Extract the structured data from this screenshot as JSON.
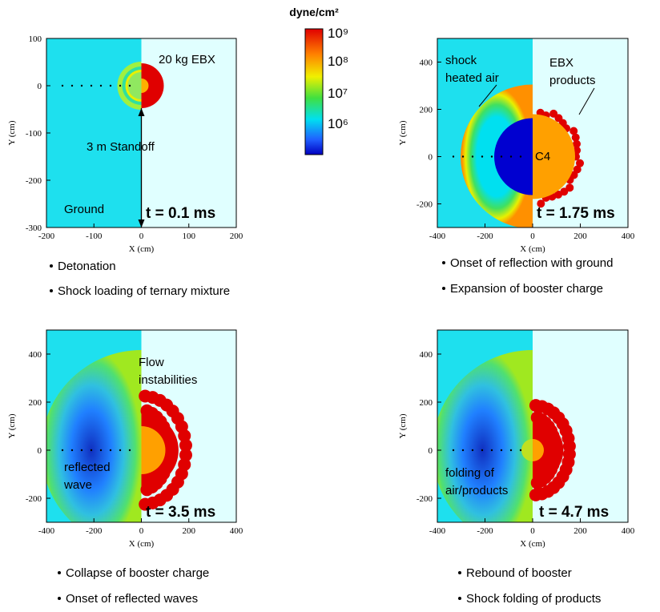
{
  "colorbar": {
    "unit": "dyne/cm²",
    "labels": [
      "10⁹",
      "10⁸",
      "10⁷",
      "10⁶"
    ]
  },
  "panels": [
    {
      "xlabel": "X (cm)",
      "ylabel": "Y (cm)",
      "xlim": [
        -200,
        200
      ],
      "ylim": [
        -300,
        100
      ],
      "xticks": [
        -200,
        -100,
        0,
        100,
        200
      ],
      "yticks": [
        100,
        0,
        -100,
        -200,
        -300
      ],
      "annotations": [
        [
          "20 kg EBX"
        ],
        [
          "3 m Standoff"
        ],
        [
          "Ground"
        ]
      ],
      "time": "t = 0.1 ms",
      "bullets": [
        "Detonation",
        "Shock loading of ternary mixture"
      ]
    },
    {
      "xlabel": "X (cm)",
      "ylabel": "Y (cm)",
      "xlim": [
        -400,
        400
      ],
      "ylim": [
        -300,
        500
      ],
      "xticks": [
        -400,
        -200,
        0,
        200,
        400
      ],
      "yticks": [
        400,
        200,
        0,
        -200
      ],
      "annotations": [
        [
          "shock",
          "heated air"
        ],
        [
          "EBX",
          "products"
        ],
        [
          "C4"
        ]
      ],
      "time": "t = 1.75 ms",
      "bullets": [
        "Onset of reflection with ground",
        "Expansion of booster charge"
      ]
    },
    {
      "xlabel": "X (cm)",
      "ylabel": "Y (cm)",
      "xlim": [
        -400,
        400
      ],
      "ylim": [
        -300,
        500
      ],
      "xticks": [
        -400,
        -200,
        0,
        200,
        400
      ],
      "yticks": [
        400,
        200,
        0,
        -200
      ],
      "annotations": [
        [
          "Flow",
          "instabilities"
        ],
        [
          "reflected",
          "wave"
        ]
      ],
      "time": "t = 3.5 ms",
      "bullets": [
        "Collapse of booster charge",
        "Onset of reflected waves"
      ]
    },
    {
      "xlabel": "X (cm)",
      "ylabel": "Y (cm)",
      "xlim": [
        -400,
        400
      ],
      "ylim": [
        -300,
        500
      ],
      "xticks": [
        -400,
        -200,
        0,
        200,
        400
      ],
      "yticks": [
        400,
        200,
        0,
        -200
      ],
      "annotations": [
        [
          "folding of",
          "air/products"
        ]
      ],
      "time": "t = 4.7 ms",
      "bullets": [
        "Rebound of booster",
        "Shock folding of products"
      ]
    }
  ]
}
